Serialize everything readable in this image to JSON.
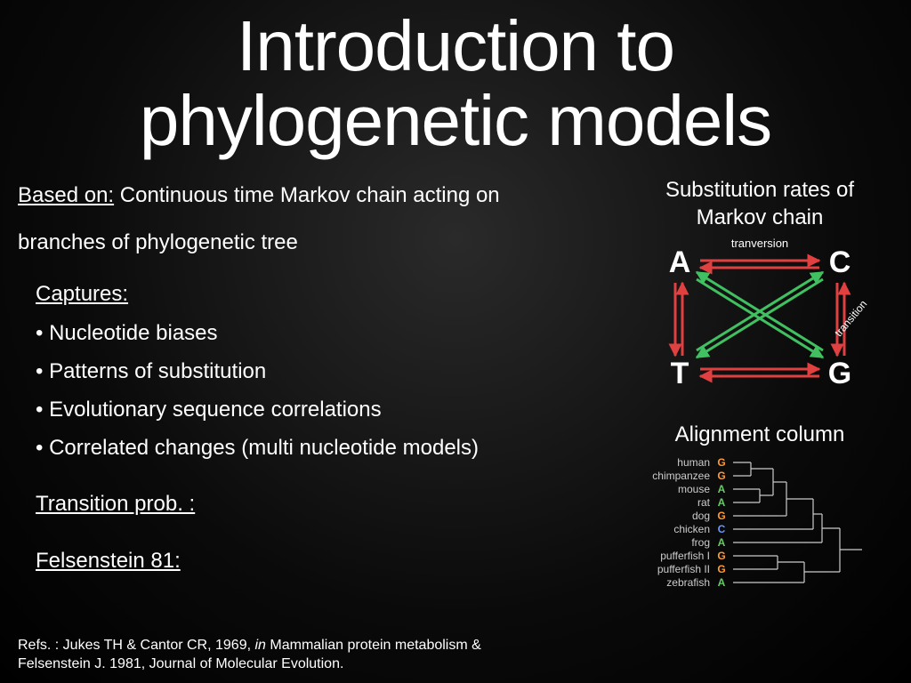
{
  "title_line1": "Introduction to",
  "title_line2": "phylogenetic models",
  "based_on": {
    "label": "Based on:",
    "line1": " Continuous time Markov chain acting on",
    "line2": "branches of phylogenetic tree"
  },
  "captures": {
    "label": "Captures:",
    "items": [
      "Nucleotide biases",
      "Patterns of substitution",
      "Evolutionary sequence correlations",
      "Correlated changes (multi nucleotide models)"
    ]
  },
  "transition_label": "Transition prob. :",
  "felsenstein_label": "Felsenstein 81:",
  "refs": {
    "prefix": "Refs. : Jukes TH & Cantor CR, 1969, ",
    "italic1": "in",
    "mid": " Mammalian protein metabolism &",
    "line2": "Felsenstein J. 1981, Journal of Molecular Evolution."
  },
  "right": {
    "sub_heading_l1": "Substitution rates of",
    "sub_heading_l2": "Markov chain",
    "align_heading": "Alignment column"
  },
  "sub_diagram": {
    "nucleotides": {
      "tl": "A",
      "tr": "C",
      "bl": "T",
      "br": "G"
    },
    "labels": {
      "tranversion": "tranversion",
      "transition": "transition"
    },
    "colors": {
      "red": "#e04040",
      "green": "#40c060",
      "text": "#ffffff"
    }
  },
  "alignment": {
    "species": [
      "human",
      "chimpanzee",
      "mouse",
      "rat",
      "dog",
      "chicken",
      "frog",
      "pufferfish I",
      "pufferfish II",
      "zebrafish"
    ],
    "bases": [
      "G",
      "G",
      "A",
      "A",
      "G",
      "C",
      "A",
      "G",
      "G",
      "A"
    ],
    "base_colors": {
      "A": "#66cc66",
      "G": "#ff9933",
      "C": "#6699ff"
    },
    "tree_color": "#cccccc"
  },
  "colors": {
    "text": "#ffffff",
    "bg_inner": "#2a2a2a",
    "bg_outer": "#000000"
  }
}
